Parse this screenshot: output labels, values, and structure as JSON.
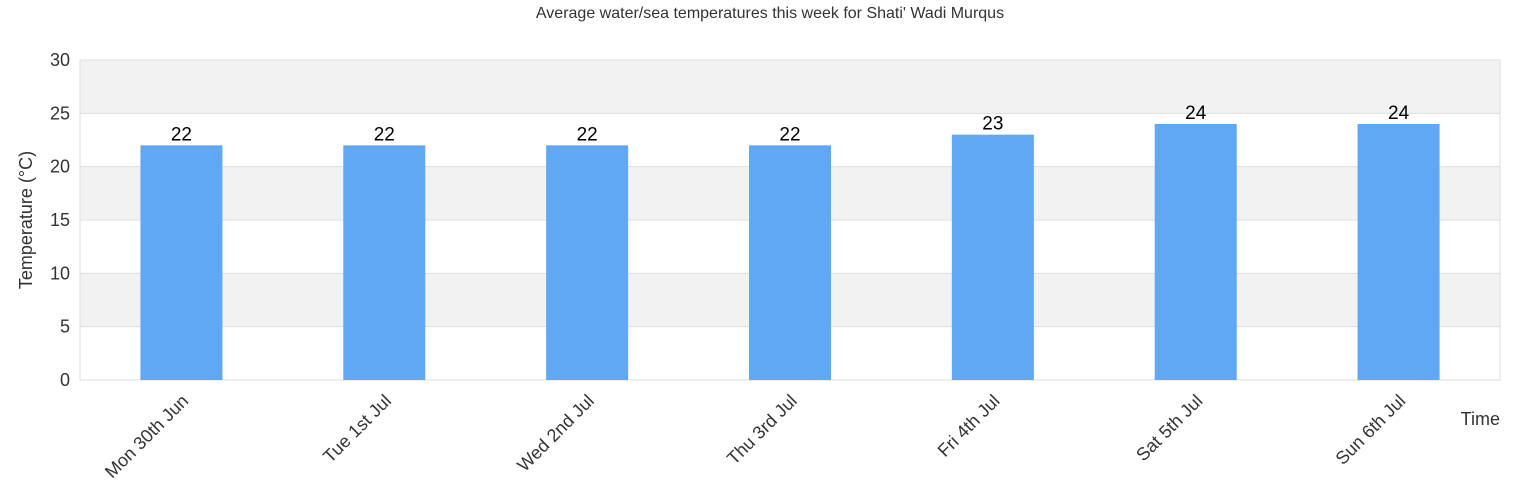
{
  "chart_data": {
    "type": "bar",
    "title": "Average water/sea temperatures this week for Shati' Wadi Murqus",
    "xlabel": "Time",
    "ylabel": "Temperature (°C)",
    "categories": [
      "Mon 30th Jun",
      "Tue 1st Jul",
      "Wed 2nd Jul",
      "Thu 3rd Jul",
      "Fri 4th Jul",
      "Sat 5th Jul",
      "Sun 6th Jul"
    ],
    "values": [
      22,
      22,
      22,
      22,
      23,
      24,
      24
    ],
    "ylim": [
      0,
      30
    ],
    "yticks": [
      0,
      5,
      10,
      15,
      20,
      25,
      30
    ],
    "grid": true,
    "colors": {
      "bar": "#60a7f4",
      "band": "#f2f2f2",
      "grid": "#dddddd"
    }
  }
}
